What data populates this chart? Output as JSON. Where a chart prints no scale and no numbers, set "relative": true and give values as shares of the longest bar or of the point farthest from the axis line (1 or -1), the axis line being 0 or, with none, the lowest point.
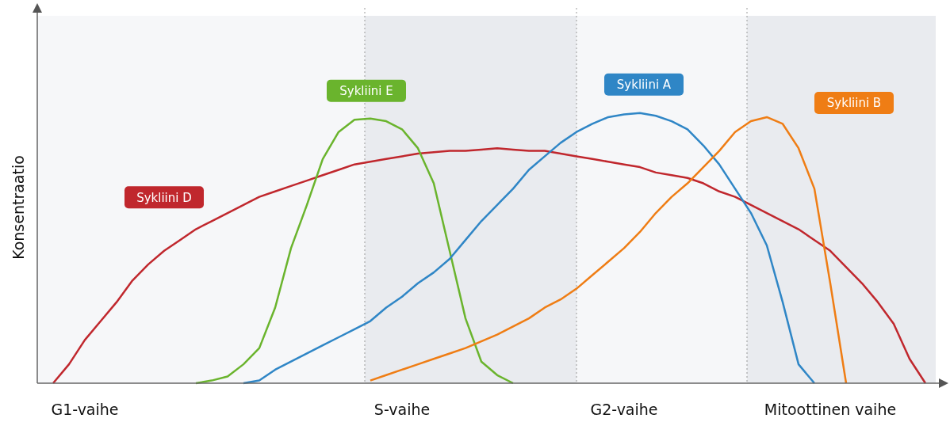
{
  "chart_data": {
    "type": "line",
    "relative": true,
    "ylabel": "Konsentraatio",
    "marker": "none",
    "line_style": "solid",
    "categories": [
      null,
      null,
      null,
      "G1-vaihe",
      null,
      null,
      null,
      null,
      null,
      null,
      null,
      null,
      null,
      null,
      null,
      null,
      null,
      null,
      null,
      null,
      null,
      null,
      null,
      "S-vaihe",
      null,
      null,
      null,
      null,
      null,
      null,
      null,
      null,
      null,
      null,
      null,
      null,
      null,
      "G2-vaihe",
      null,
      null,
      null,
      null,
      null,
      null,
      null,
      null,
      null,
      null,
      null,
      null,
      "Mitoottinen vaihe",
      null,
      null,
      null,
      null,
      null,
      null
    ],
    "series": [
      {
        "name": "Sykliini D",
        "color": "#c0272d",
        "values": [
          null,
          0,
          0.07,
          0.16,
          0.23,
          0.3,
          0.38,
          0.44,
          0.49,
          0.53,
          0.57,
          0.6,
          0.63,
          0.66,
          0.69,
          0.71,
          0.73,
          0.75,
          0.77,
          0.79,
          0.81,
          0.82,
          0.83,
          0.84,
          0.85,
          0.855,
          0.86,
          0.86,
          0.865,
          0.87,
          0.865,
          0.86,
          0.86,
          0.85,
          0.84,
          0.83,
          0.82,
          0.81,
          0.8,
          0.78,
          0.77,
          0.76,
          0.74,
          0.71,
          0.69,
          0.66,
          0.63,
          0.6,
          0.57,
          0.53,
          0.49,
          0.43,
          0.37,
          0.3,
          0.22,
          0.09,
          0
        ]
      },
      {
        "name": "Sykliini E",
        "color": "#6ab42d",
        "values": [
          null,
          null,
          null,
          null,
          null,
          null,
          null,
          null,
          null,
          null,
          0,
          0.01,
          0.025,
          0.07,
          0.13,
          0.28,
          0.5,
          0.66,
          0.83,
          0.93,
          0.975,
          0.98,
          0.97,
          0.94,
          0.87,
          0.74,
          0.49,
          0.24,
          0.08,
          0.03,
          0,
          null,
          null,
          null,
          null,
          null,
          null,
          null,
          null,
          null,
          null,
          null,
          null,
          null,
          null,
          null,
          null,
          null,
          null,
          null,
          null,
          null,
          null,
          null,
          null,
          null,
          null
        ]
      },
      {
        "name": "Sykliini A",
        "color": "#2f86c6",
        "values": [
          null,
          null,
          null,
          null,
          null,
          null,
          null,
          null,
          null,
          null,
          null,
          null,
          null,
          0,
          0.01,
          0.05,
          0.08,
          0.11,
          0.14,
          0.17,
          0.2,
          0.23,
          0.28,
          0.32,
          0.37,
          0.41,
          0.46,
          0.53,
          0.6,
          0.66,
          0.72,
          0.79,
          0.84,
          0.89,
          0.93,
          0.96,
          0.985,
          0.995,
          1,
          0.99,
          0.97,
          0.94,
          0.88,
          0.81,
          0.72,
          0.63,
          0.51,
          0.3,
          0.07,
          0,
          null,
          null,
          null,
          null,
          null,
          null,
          null
        ]
      },
      {
        "name": "Sykliini B",
        "color": "#ef7d14",
        "values": [
          null,
          null,
          null,
          null,
          null,
          null,
          null,
          null,
          null,
          null,
          null,
          null,
          null,
          null,
          null,
          null,
          null,
          null,
          null,
          null,
          null,
          0.01,
          0.03,
          0.05,
          0.07,
          0.09,
          0.11,
          0.13,
          0.155,
          0.18,
          0.21,
          0.24,
          0.28,
          0.31,
          0.35,
          0.4,
          0.45,
          0.5,
          0.56,
          0.63,
          0.69,
          0.74,
          0.8,
          0.86,
          0.93,
          0.97,
          0.985,
          0.96,
          0.87,
          0.72,
          0.37,
          0,
          null,
          null,
          null,
          null,
          null
        ]
      }
    ]
  }
}
